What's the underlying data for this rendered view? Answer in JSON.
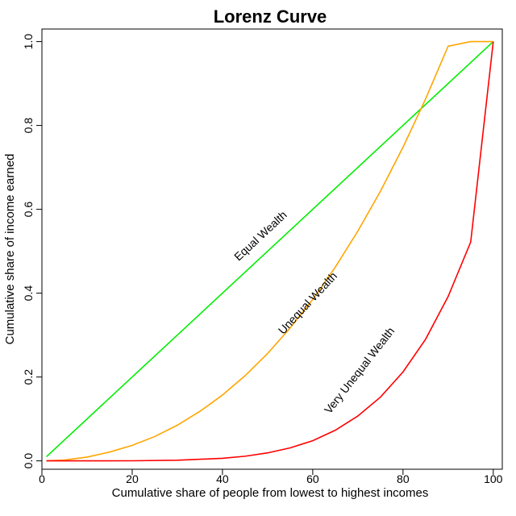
{
  "chart_data": {
    "type": "line",
    "title": "Lorenz Curve",
    "xlabel": "Cumulative share of people from lowest to highest incomes",
    "ylabel": "Cumulative share of income earned",
    "xlim": [
      0,
      102
    ],
    "ylim": [
      -0.02,
      1.03
    ],
    "x_ticks": [
      0,
      20,
      40,
      60,
      80,
      100
    ],
    "y_ticks": [
      0.0,
      0.2,
      0.4,
      0.6,
      0.8,
      1.0
    ],
    "x_tick_labels": [
      "0",
      "20",
      "40",
      "60",
      "80",
      "100"
    ],
    "y_tick_labels": [
      "0.0",
      "0.2",
      "0.4",
      "0.6",
      "0.8",
      "1.0"
    ],
    "grid": false,
    "legend": "none",
    "series": [
      {
        "color": "#00ee00",
        "x": [
          1,
          20,
          40,
          60,
          80,
          100
        ],
        "y": [
          0.01,
          0.2,
          0.4,
          0.6,
          0.8,
          1.0
        ]
      },
      {
        "color": "#ffa500",
        "x": [
          1,
          5,
          10,
          15,
          20,
          25,
          30,
          35,
          40,
          45,
          50,
          55,
          60,
          65,
          70,
          75,
          80,
          85,
          90,
          95,
          100
        ],
        "y": [
          0.0,
          0.002,
          0.009,
          0.021,
          0.037,
          0.058,
          0.085,
          0.118,
          0.157,
          0.203,
          0.256,
          0.317,
          0.385,
          0.462,
          0.548,
          0.643,
          0.748,
          0.863,
          0.989,
          1.0,
          1.0
        ]
      },
      {
        "color": "#ff0000",
        "x": [
          1,
          10,
          20,
          30,
          40,
          45,
          50,
          55,
          60,
          65,
          70,
          75,
          80,
          85,
          90,
          95,
          100
        ],
        "y": [
          0.0,
          0.0,
          0.0002,
          0.0015,
          0.006,
          0.011,
          0.019,
          0.031,
          0.048,
          0.073,
          0.107,
          0.152,
          0.212,
          0.29,
          0.392,
          0.522,
          1.0
        ]
      }
    ],
    "annotations": [
      {
        "text": "Equal Wealth",
        "x": 49,
        "y": 0.53,
        "angle": -43
      },
      {
        "text": "Unequal Wealth",
        "x": 59.5,
        "y": 0.37,
        "angle": -47
      },
      {
        "text": "Very Unequal Wealth",
        "x": 71,
        "y": 0.21,
        "angle": -52
      }
    ]
  }
}
